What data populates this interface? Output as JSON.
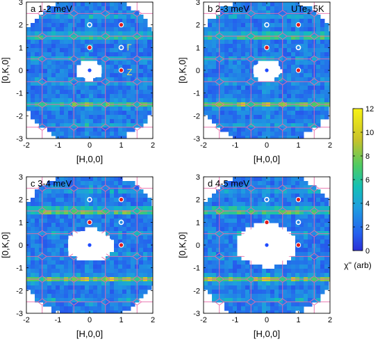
{
  "figure": {
    "xlabel": "[H,0,0]",
    "ylabel": "[0,K,0]",
    "annotation": "UTe",
    "annotation_sub": "2",
    "annotation_suffix": " 5K",
    "point_labels": {
      "gamma": "Γ",
      "z": "Z"
    },
    "colorbar": {
      "label": "χ'' (arb)",
      "ticks": [
        "0",
        "2",
        "4",
        "6",
        "8",
        "10",
        "12"
      ],
      "min": 0,
      "max": 12
    },
    "panels": [
      {
        "id": "a",
        "title": "a 1-2 meV"
      },
      {
        "id": "b",
        "title": "b 2-3 meV"
      },
      {
        "id": "c",
        "title": "c 3-4 meV"
      },
      {
        "id": "d",
        "title": "d 4-5 meV"
      }
    ],
    "x_ticks": [
      "-2",
      "-1",
      "0",
      "1",
      "2"
    ],
    "y_ticks": [
      "3",
      "2",
      "1",
      "0",
      "-1",
      "-2",
      "-3"
    ]
  },
  "chart_data": [
    {
      "type": "heatmap",
      "title": "a 1-2 meV",
      "xlabel": "[H,0,0]",
      "ylabel": "[0,K,0]",
      "xlim": [
        -2,
        2
      ],
      "ylim": [
        -3,
        3
      ],
      "energy_meV": [
        1,
        2
      ],
      "markers_white": [
        [
          0,
          2
        ],
        [
          1,
          1
        ]
      ],
      "markers_red": [
        [
          1,
          2
        ],
        [
          0,
          1
        ],
        [
          1,
          0
        ]
      ],
      "stripes_K": [
        1.5,
        -1.5
      ],
      "colorbar": [
        0,
        12
      ]
    },
    {
      "type": "heatmap",
      "title": "b 2-3 meV",
      "xlabel": "[H,0,0]",
      "ylabel": "[0,K,0]",
      "xlim": [
        -2,
        2
      ],
      "ylim": [
        -3,
        3
      ],
      "energy_meV": [
        2,
        3
      ],
      "markers_white": [
        [
          0,
          2
        ],
        [
          1,
          1
        ]
      ],
      "markers_red": [
        [
          1,
          2
        ],
        [
          0,
          1
        ],
        [
          1,
          0
        ]
      ],
      "stripes_K": [
        1.5,
        -1.5
      ],
      "colorbar": [
        0,
        12
      ]
    },
    {
      "type": "heatmap",
      "title": "c 3-4 meV",
      "xlabel": "[H,0,0]",
      "ylabel": "[0,K,0]",
      "xlim": [
        -2,
        2
      ],
      "ylim": [
        -3,
        3
      ],
      "energy_meV": [
        3,
        4
      ],
      "markers_white": [
        [
          0,
          2
        ],
        [
          1,
          1
        ]
      ],
      "markers_red": [
        [
          1,
          2
        ],
        [
          0,
          1
        ],
        [
          1,
          0
        ]
      ],
      "stripes_K": [
        1.5,
        -1.5
      ],
      "colorbar": [
        0,
        12
      ]
    },
    {
      "type": "heatmap",
      "title": "d 4-5 meV",
      "xlabel": "[H,0,0]",
      "ylabel": "[0,K,0]",
      "xlim": [
        -2,
        2
      ],
      "ylim": [
        -3,
        3
      ],
      "energy_meV": [
        4,
        5
      ],
      "markers_white": [
        [
          0,
          2
        ],
        [
          1,
          1
        ]
      ],
      "markers_red": [
        [
          1,
          2
        ],
        [
          0,
          1
        ],
        [
          1,
          0
        ]
      ],
      "stripes_K": [
        1.5,
        -1.5
      ],
      "colorbar": [
        0,
        12
      ]
    }
  ],
  "colors": {
    "zone_lines": "#e76aa8",
    "red_marker": "#e21b1b",
    "center_dot": "#1f4bff",
    "label_yellow": "#f0e060"
  }
}
